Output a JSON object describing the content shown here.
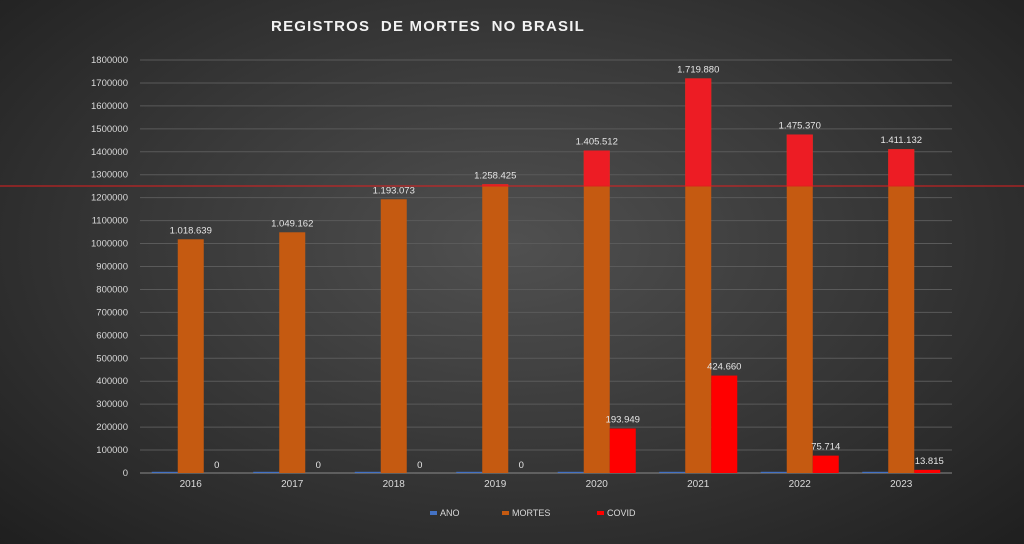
{
  "chart_data": {
    "type": "bar",
    "title": "REGISTROS  DE MORTES  NO BRASIL",
    "xlabel": "",
    "ylabel": "",
    "ylim": [
      0,
      1800000
    ],
    "ytick_step": 100000,
    "grid": true,
    "legend": "bottom",
    "categories": [
      "2016",
      "2017",
      "2018",
      "2019",
      "2020",
      "2021",
      "2022",
      "2023"
    ],
    "series": [
      {
        "name": "ANO",
        "color": "#4472c4",
        "values": [
          2016,
          2017,
          2018,
          2019,
          2020,
          2021,
          2022,
          2023
        ],
        "labels": null
      },
      {
        "name": "MORTES",
        "color": "#c55a11",
        "values": [
          1018639,
          1049162,
          1193073,
          1258425,
          1405512,
          1719880,
          1475370,
          1411132
        ],
        "labels": [
          "1.018.639",
          "1.049.162",
          "1.193.073",
          "1.258.425",
          "1.405.512",
          "1.719.880",
          "1.475.370",
          "1.411.132"
        ]
      },
      {
        "name": "COVID",
        "color": "#ff0000",
        "values": [
          0,
          0,
          0,
          0,
          193949,
          424660,
          75714,
          13815
        ],
        "labels": [
          "0",
          "0",
          "0",
          "0",
          "193.949",
          "424.660",
          "75.714",
          "13.815"
        ]
      }
    ],
    "annotations": {
      "reference_line": {
        "value": 1251000,
        "color": "#e01e1e"
      },
      "excess_highlight": {
        "above": 1251000,
        "color": "#ed1c24",
        "applies_from": "2020"
      }
    }
  }
}
